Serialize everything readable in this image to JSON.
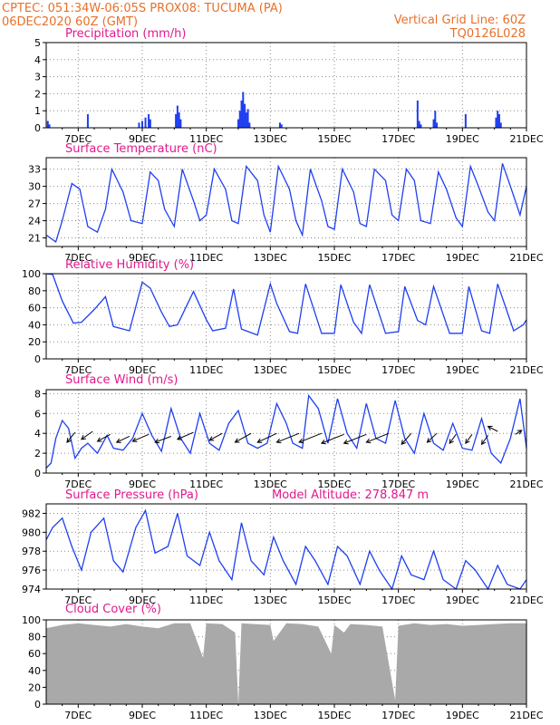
{
  "header": {
    "line1_left": "CPTEC:   051:34W-06:05S   PROX08: TUCUMA (PA)",
    "line2_left": "06DEC2020 60Z (GMT)",
    "line1_right": "Vertical Grid Line: 60Z",
    "line2_right": "TQ0126L028"
  },
  "colors": {
    "header": "#e8702a",
    "panel_title": "#e0198c",
    "series": "#1f3ff0",
    "cloud": "#a9a9a9",
    "grid": "#8a8a8a"
  },
  "chart_data": [
    {
      "type": "bar",
      "title": "Precipitation (mm/h)",
      "ylim": [
        0,
        5
      ],
      "yticks": [
        "0",
        "1",
        "2",
        "3",
        "4",
        "5"
      ],
      "xlim": [
        6,
        21
      ],
      "xtick_labels": [
        "7DEC",
        "9DEC",
        "11DEC",
        "13DEC",
        "15DEC",
        "17DEC",
        "19DEC",
        "21DEC"
      ],
      "x": [
        6.05,
        6.1,
        7.3,
        8.9,
        9.0,
        9.1,
        9.2,
        9.25,
        10.05,
        10.1,
        10.15,
        10.2,
        12.0,
        12.05,
        12.1,
        12.15,
        12.2,
        12.25,
        12.3,
        12.35,
        13.3,
        13.35,
        17.6,
        17.65,
        17.7,
        18.1,
        18.15,
        18.2,
        19.1,
        20.05,
        20.1,
        20.15,
        20.2
      ],
      "values": [
        0.4,
        0.2,
        0.8,
        0.3,
        0.4,
        0.6,
        0.8,
        0.5,
        0.8,
        1.3,
        0.9,
        0.5,
        0.5,
        1.0,
        1.6,
        2.1,
        1.4,
        0.9,
        1.1,
        0.3,
        0.3,
        0.2,
        1.6,
        0.4,
        0.2,
        0.5,
        1.0,
        0.3,
        0.8,
        0.6,
        1.0,
        0.8,
        0.3
      ]
    },
    {
      "type": "line",
      "title": "Surface Temperature (nC)",
      "ylim": [
        19.5,
        35
      ],
      "yticks": [
        "21",
        "24",
        "27",
        "30",
        "33"
      ],
      "xlim": [
        6,
        21
      ],
      "xtick_labels": [
        "7DEC",
        "9DEC",
        "11DEC",
        "13DEC",
        "15DEC",
        "17DEC",
        "19DEC",
        "21DEC"
      ],
      "x": [
        6.0,
        6.3,
        6.5,
        6.8,
        7.05,
        7.3,
        7.6,
        7.85,
        8.05,
        8.4,
        8.65,
        9.0,
        9.25,
        9.5,
        9.7,
        10.0,
        10.25,
        10.6,
        10.8,
        11.0,
        11.25,
        11.6,
        11.8,
        12.0,
        12.25,
        12.6,
        12.8,
        13.0,
        13.25,
        13.6,
        13.8,
        14.0,
        14.25,
        14.6,
        14.8,
        15.0,
        15.25,
        15.6,
        15.8,
        16.0,
        16.25,
        16.6,
        16.8,
        17.0,
        17.25,
        17.5,
        17.7,
        18.0,
        18.25,
        18.5,
        18.8,
        19.0,
        19.25,
        19.5,
        19.8,
        20.0,
        20.25,
        20.5,
        20.8,
        21.0
      ],
      "values": [
        21.5,
        20.3,
        24.0,
        30.5,
        29.5,
        23.0,
        22.0,
        26.0,
        33.0,
        29.0,
        24.0,
        23.5,
        32.5,
        31.0,
        26.0,
        23.0,
        33.0,
        27.5,
        24.0,
        25.0,
        33.0,
        29.5,
        24.0,
        23.5,
        33.5,
        31.0,
        25.0,
        22.0,
        33.5,
        29.5,
        24.0,
        21.5,
        33.0,
        27.5,
        23.0,
        22.5,
        33.0,
        29.0,
        23.5,
        23.0,
        33.0,
        31.0,
        25.0,
        24.0,
        33.0,
        31.0,
        24.0,
        23.5,
        32.5,
        29.5,
        24.5,
        23.0,
        33.5,
        30.0,
        25.5,
        24.0,
        34.0,
        30.0,
        25.0,
        30.0
      ]
    },
    {
      "type": "line",
      "title": "Relative Humidity (%)",
      "ylim": [
        0,
        100
      ],
      "yticks": [
        "0",
        "20",
        "40",
        "60",
        "80",
        "100"
      ],
      "xlim": [
        6,
        21
      ],
      "xtick_labels": [
        "7DEC",
        "9DEC",
        "11DEC",
        "13DEC",
        "15DEC",
        "17DEC",
        "19DEC",
        "21DEC"
      ],
      "x": [
        6.0,
        6.2,
        6.5,
        6.85,
        7.1,
        7.5,
        7.85,
        8.1,
        8.6,
        9.0,
        9.25,
        9.6,
        9.85,
        10.1,
        10.6,
        11.0,
        11.2,
        11.6,
        11.85,
        12.1,
        12.6,
        13.0,
        13.2,
        13.6,
        13.85,
        14.1,
        14.6,
        15.0,
        15.2,
        15.6,
        15.85,
        16.1,
        16.6,
        17.0,
        17.2,
        17.55,
        17.6,
        17.85,
        18.1,
        18.6,
        19.0,
        19.2,
        19.6,
        19.85,
        20.1,
        20.6,
        20.9,
        21.0
      ],
      "values": [
        100,
        99,
        68,
        42,
        43,
        58,
        73,
        38,
        33,
        90,
        83,
        55,
        38,
        40,
        79,
        46,
        33,
        36,
        82,
        35,
        28,
        88,
        65,
        32,
        30,
        88,
        30,
        30,
        87,
        43,
        30,
        87,
        30,
        32,
        85,
        50,
        45,
        40,
        85,
        30,
        30,
        85,
        33,
        30,
        88,
        33,
        40,
        46
      ]
    },
    {
      "type": "line",
      "title": "Surface Wind (m/s)",
      "ylim": [
        0,
        8.4
      ],
      "yticks": [
        "0",
        "2",
        "4",
        "6",
        "8"
      ],
      "xlim": [
        6,
        21
      ],
      "xtick_labels": [
        "7DEC",
        "9DEC",
        "11DEC",
        "13DEC",
        "15DEC",
        "17DEC",
        "19DEC",
        "21DEC"
      ],
      "x": [
        6.0,
        6.15,
        6.3,
        6.5,
        6.7,
        6.9,
        7.1,
        7.3,
        7.6,
        7.9,
        8.1,
        8.4,
        8.7,
        9.0,
        9.3,
        9.6,
        9.9,
        10.2,
        10.5,
        10.8,
        11.1,
        11.4,
        11.7,
        12.0,
        12.3,
        12.6,
        12.9,
        13.2,
        13.5,
        13.7,
        14.0,
        14.2,
        14.5,
        14.8,
        15.1,
        15.4,
        15.7,
        16.0,
        16.3,
        16.6,
        16.9,
        17.2,
        17.5,
        17.8,
        18.1,
        18.4,
        18.7,
        19.0,
        19.3,
        19.6,
        19.9,
        20.2,
        20.5,
        20.8,
        21.0
      ],
      "values": [
        0.5,
        1.0,
        3.5,
        5.3,
        4.5,
        1.5,
        2.5,
        3.0,
        2.0,
        3.8,
        2.5,
        2.3,
        3.5,
        6.0,
        3.8,
        2.2,
        6.5,
        3.5,
        2.0,
        6.0,
        3.0,
        2.3,
        5.0,
        6.3,
        3.0,
        2.5,
        3.0,
        7.0,
        5.0,
        3.0,
        2.5,
        7.8,
        6.5,
        3.0,
        7.5,
        4.0,
        2.5,
        7.0,
        3.5,
        3.0,
        7.3,
        3.5,
        2.0,
        6.0,
        3.0,
        2.3,
        5.0,
        2.5,
        2.3,
        5.5,
        2.0,
        1.0,
        3.5,
        7.5,
        2.5
      ]
    },
    {
      "type": "line",
      "title": "Surface Pressure (hPa)",
      "annotation": "Model Altitude: 278.847 m",
      "ylim": [
        974,
        983
      ],
      "yticks": [
        "974",
        "976",
        "978",
        "980",
        "982"
      ],
      "xlim": [
        6,
        21
      ],
      "xtick_labels": [
        "7DEC",
        "9DEC",
        "11DEC",
        "13DEC",
        "15DEC",
        "17DEC",
        "19DEC",
        "21DEC"
      ],
      "x": [
        6.0,
        6.2,
        6.5,
        6.8,
        7.1,
        7.4,
        7.8,
        8.1,
        8.4,
        8.8,
        9.1,
        9.4,
        9.8,
        10.1,
        10.4,
        10.8,
        11.1,
        11.4,
        11.8,
        12.1,
        12.4,
        12.8,
        13.1,
        13.4,
        13.8,
        14.1,
        14.4,
        14.8,
        15.1,
        15.4,
        15.8,
        16.1,
        16.4,
        16.8,
        17.1,
        17.4,
        17.8,
        18.1,
        18.4,
        18.8,
        19.1,
        19.4,
        19.8,
        20.1,
        20.4,
        20.8,
        21.0
      ],
      "values": [
        979.2,
        980.5,
        981.5,
        978.5,
        976.0,
        980.0,
        981.5,
        977.0,
        975.8,
        980.5,
        982.3,
        977.8,
        978.5,
        982.0,
        977.5,
        976.5,
        980.0,
        977.0,
        975.0,
        981.0,
        977.0,
        975.5,
        979.5,
        977.0,
        974.5,
        978.5,
        977.0,
        974.5,
        978.5,
        977.5,
        974.5,
        978.0,
        976.0,
        974.0,
        977.5,
        975.5,
        975.0,
        978.0,
        975.0,
        973.8,
        977.0,
        976.0,
        973.8,
        976.5,
        974.5,
        973.5,
        975.0
      ]
    },
    {
      "type": "area",
      "title": "Cloud Cover (%)",
      "ylim": [
        0,
        100
      ],
      "yticks": [
        "0",
        "20",
        "40",
        "60",
        "80",
        "100"
      ],
      "xlim": [
        6,
        21
      ],
      "xtick_labels": [
        "7DEC",
        "9DEC",
        "11DEC",
        "13DEC",
        "15DEC",
        "17DEC",
        "19DEC",
        "21DEC"
      ],
      "x": [
        6.0,
        6.5,
        7.0,
        7.5,
        8.0,
        8.5,
        9.0,
        9.5,
        10.0,
        10.5,
        10.9,
        11.0,
        11.5,
        11.9,
        12.0,
        12.1,
        12.5,
        13.0,
        13.1,
        13.5,
        14.0,
        14.5,
        14.9,
        15.0,
        15.3,
        15.5,
        16.0,
        16.5,
        16.9,
        17.0,
        17.5,
        18.0,
        18.5,
        19.0,
        19.5,
        20.0,
        20.5,
        21.0
      ],
      "values": [
        90,
        94,
        96,
        94,
        92,
        95,
        92,
        90,
        96,
        96,
        55,
        96,
        95,
        85,
        0,
        96,
        95,
        94,
        75,
        96,
        95,
        92,
        60,
        94,
        85,
        95,
        94,
        92,
        5,
        93,
        96,
        94,
        95,
        93,
        94,
        95,
        96,
        96
      ]
    }
  ]
}
